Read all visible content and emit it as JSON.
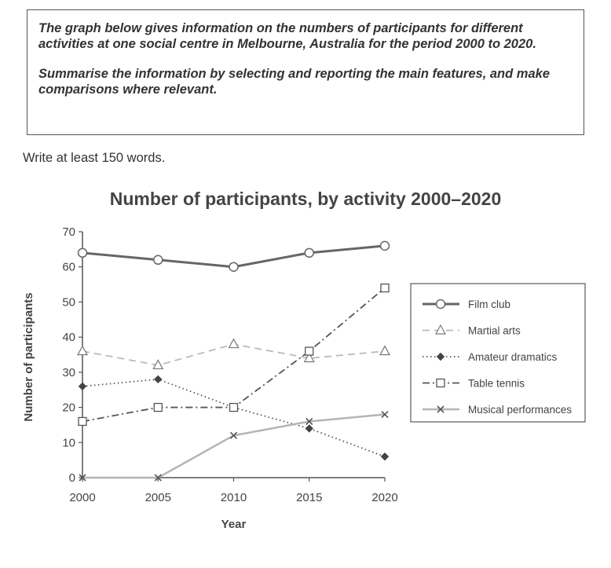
{
  "task": {
    "prompt_paragraphs": [
      "The graph below gives information on the numbers of participants for different activities at one social centre in Melbourne, Australia for the period 2000 to 2020.",
      "Summarise the information by selecting and reporting the main features, and make comparisons where relevant."
    ],
    "instruction": "Write at least 150 words."
  },
  "chart_data": {
    "type": "line",
    "title": "Number of participants, by activity 2000–2020",
    "xlabel": "Year",
    "ylabel": "Number of participants",
    "x": [
      2000,
      2005,
      2010,
      2015,
      2020
    ],
    "xlim": [
      2000,
      2020
    ],
    "ylim": [
      0,
      70
    ],
    "yticks": [
      0,
      10,
      20,
      30,
      40,
      50,
      60,
      70
    ],
    "grid": false,
    "legend_position": "right",
    "series": [
      {
        "name": "Film club",
        "values": [
          64,
          62,
          60,
          64,
          66
        ],
        "color": "#666666",
        "style": "solid",
        "marker": "circle"
      },
      {
        "name": "Martial arts",
        "values": [
          36,
          32,
          38,
          34,
          36
        ],
        "color": "#bbbbbb",
        "style": "dashed",
        "marker": "triangle"
      },
      {
        "name": "Amateur dramatics",
        "values": [
          26,
          28,
          20,
          14,
          6
        ],
        "color": "#555555",
        "style": "dotted",
        "marker": "diamond"
      },
      {
        "name": "Table tennis",
        "values": [
          16,
          20,
          20,
          36,
          54
        ],
        "color": "#555555",
        "style": "dashdot",
        "marker": "square"
      },
      {
        "name": "Musical performances",
        "values": [
          0,
          0,
          12,
          16,
          18
        ],
        "color": "#b5b5b5",
        "style": "solid",
        "marker": "x"
      }
    ]
  }
}
